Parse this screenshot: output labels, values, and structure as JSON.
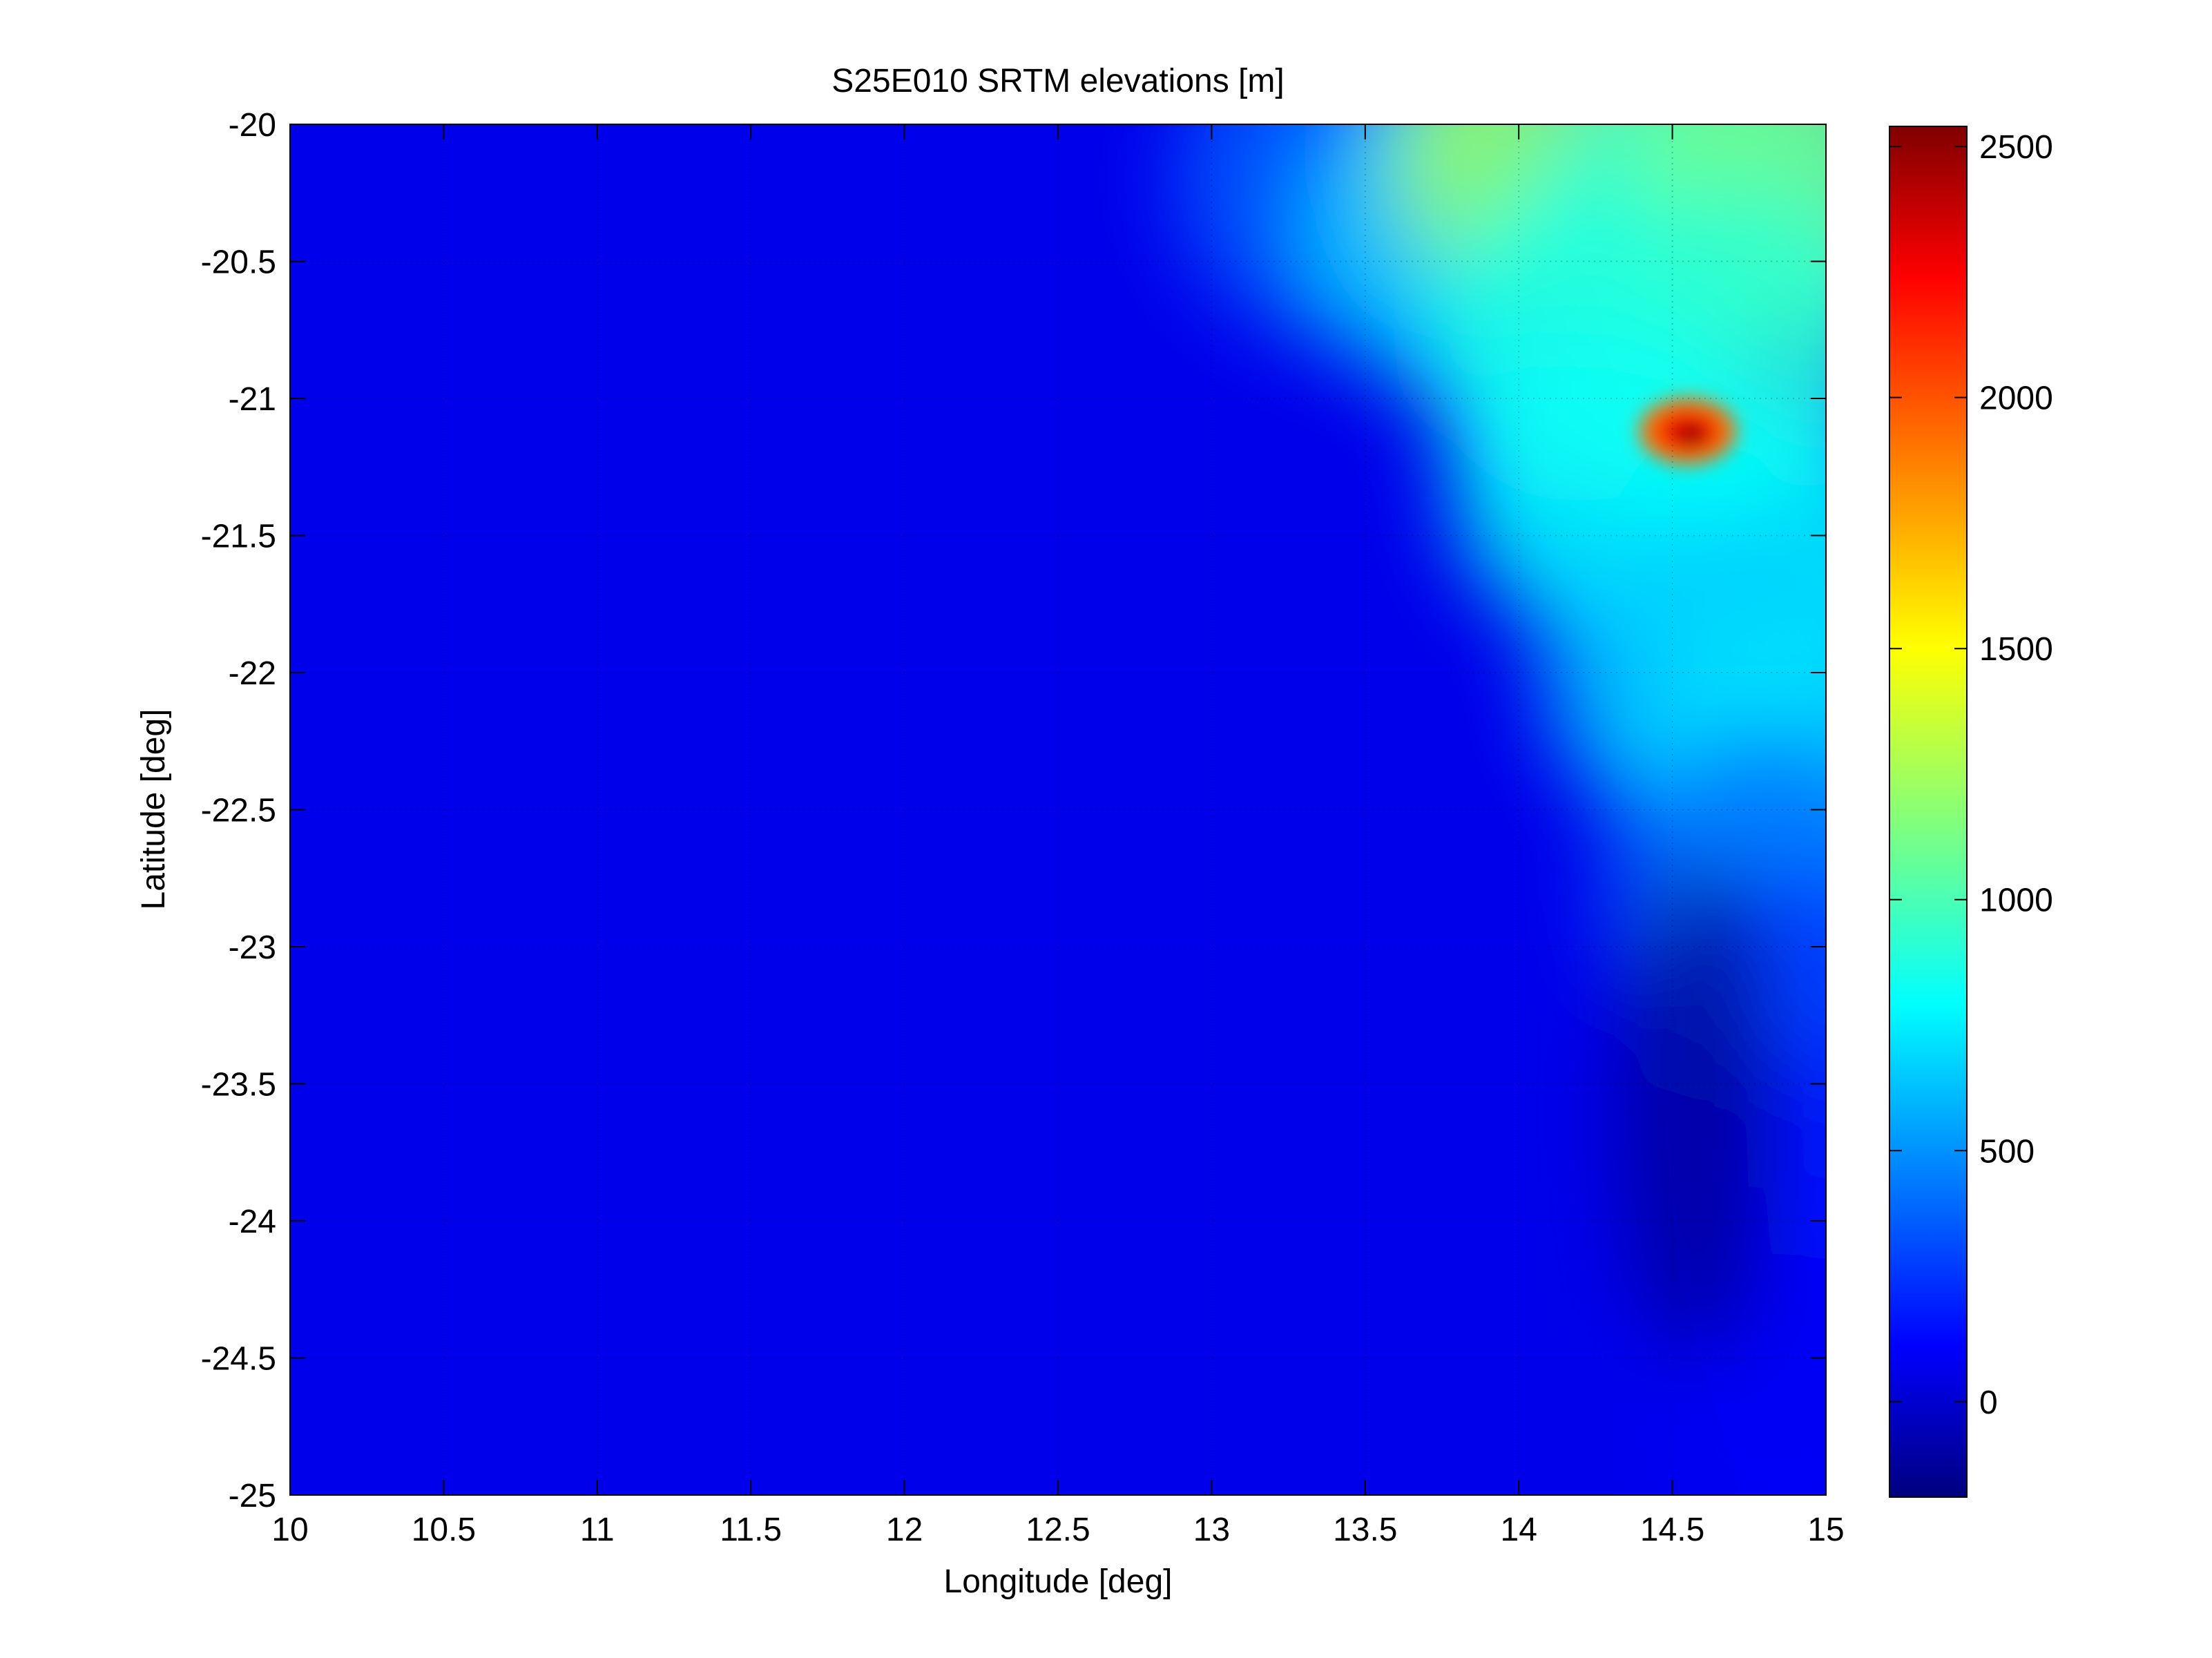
{
  "chart_data": {
    "type": "heatmap",
    "title": "S25E010 SRTM elevations [m]",
    "xlabel": "Longitude [deg]",
    "ylabel": "Latitude [deg]",
    "xlim": [
      10,
      15
    ],
    "ylim": [
      -25,
      -20
    ],
    "grid": true,
    "colormap": "jet",
    "x_ticks": [
      {
        "value": 10,
        "label": "10"
      },
      {
        "value": 10.5,
        "label": "10.5"
      },
      {
        "value": 11,
        "label": "11"
      },
      {
        "value": 11.5,
        "label": "11.5"
      },
      {
        "value": 12,
        "label": "12"
      },
      {
        "value": 12.5,
        "label": "12.5"
      },
      {
        "value": 13,
        "label": "13"
      },
      {
        "value": 13.5,
        "label": "13.5"
      },
      {
        "value": 14,
        "label": "14"
      },
      {
        "value": 14.5,
        "label": "14.5"
      },
      {
        "value": 15,
        "label": "15"
      }
    ],
    "y_ticks": [
      {
        "value": -20,
        "label": "-20"
      },
      {
        "value": -20.5,
        "label": "-20.5"
      },
      {
        "value": -21,
        "label": "-21"
      },
      {
        "value": -21.5,
        "label": "-21.5"
      },
      {
        "value": -22,
        "label": "-22"
      },
      {
        "value": -22.5,
        "label": "-22.5"
      },
      {
        "value": -23,
        "label": "-23"
      },
      {
        "value": -23.5,
        "label": "-23.5"
      },
      {
        "value": -24,
        "label": "-24"
      },
      {
        "value": -24.5,
        "label": "-24.5"
      },
      {
        "value": -25,
        "label": "-25"
      }
    ],
    "colorbar": {
      "min": -190,
      "max": 2540,
      "ticks": [
        {
          "value": 0,
          "label": "0"
        },
        {
          "value": 500,
          "label": "500"
        },
        {
          "value": 1000,
          "label": "1000"
        },
        {
          "value": 1500,
          "label": "1500"
        },
        {
          "value": 2000,
          "label": "2000"
        },
        {
          "value": 2500,
          "label": "2500"
        }
      ]
    },
    "ocean_value": 0,
    "coastline": [
      {
        "lon": 13.15,
        "lat": -20.0
      },
      {
        "lon": 13.3,
        "lat": -20.35
      },
      {
        "lon": 13.55,
        "lat": -20.75
      },
      {
        "lon": 13.75,
        "lat": -21.0
      },
      {
        "lon": 13.92,
        "lat": -21.35
      },
      {
        "lon": 14.1,
        "lat": -21.6
      },
      {
        "lon": 14.28,
        "lat": -21.95
      },
      {
        "lon": 14.4,
        "lat": -22.2
      },
      {
        "lon": 14.48,
        "lat": -22.45
      },
      {
        "lon": 14.52,
        "lat": -22.8
      },
      {
        "lon": 14.5,
        "lat": -23.2
      },
      {
        "lon": 14.48,
        "lat": -23.7
      },
      {
        "lon": 14.52,
        "lat": -24.2
      },
      {
        "lon": 14.62,
        "lat": -24.6
      },
      {
        "lon": 14.72,
        "lat": -25.0
      }
    ],
    "terrain": [
      {
        "lon": 13.4,
        "lat": -20.2,
        "value": 400
      },
      {
        "lon": 13.8,
        "lat": -20.4,
        "value": 700
      },
      {
        "lon": 14.1,
        "lat": -20.1,
        "value": 1250
      },
      {
        "lon": 14.6,
        "lat": -20.3,
        "value": 950
      },
      {
        "lon": 14.9,
        "lat": -20.2,
        "value": 1150
      },
      {
        "lon": 14.2,
        "lat": -20.8,
        "value": 900
      },
      {
        "lon": 14.7,
        "lat": -20.8,
        "value": 950
      },
      {
        "lon": 14.3,
        "lat": -21.3,
        "value": 850
      },
      {
        "lon": 14.8,
        "lat": -21.6,
        "value": 850
      },
      {
        "lon": 14.6,
        "lat": -22.0,
        "value": 700
      },
      {
        "lon": 14.9,
        "lat": -22.3,
        "value": 750
      },
      {
        "lon": 14.8,
        "lat": -22.8,
        "value": 450
      },
      {
        "lon": 14.9,
        "lat": -23.3,
        "value": 300
      },
      {
        "lon": 14.9,
        "lat": -24.0,
        "value": 200
      },
      {
        "lon": 14.9,
        "lat": -24.7,
        "value": 120
      }
    ],
    "peak": {
      "name": "",
      "lon": 14.55,
      "lat": -21.12,
      "value": 2540
    },
    "depressions": [
      {
        "lon": 14.5,
        "lat": -23.6,
        "value": -190
      }
    ]
  }
}
